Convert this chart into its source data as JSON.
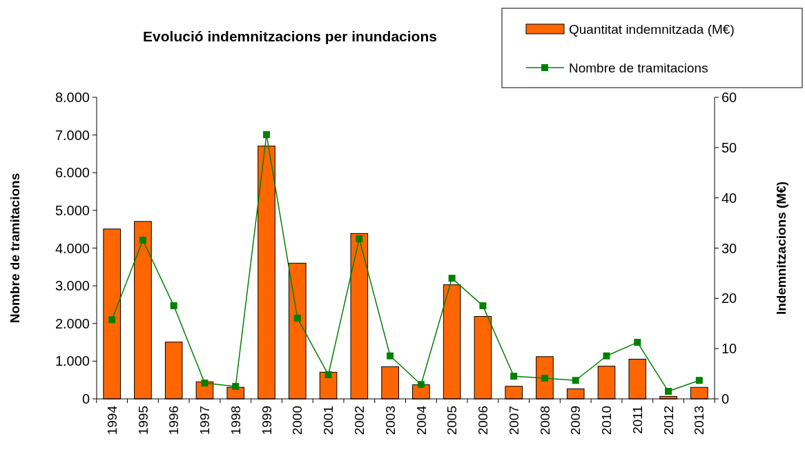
{
  "chart_data": {
    "type": "bar",
    "title": "Evolució indemnitzacions per inundacions",
    "ylabel": "Nombre de tramitacions",
    "y2label": "Indemnitzacions (M€)",
    "categories": [
      "1994",
      "1995",
      "1996",
      "1997",
      "1998",
      "1999",
      "2000",
      "2001",
      "2002",
      "2003",
      "2004",
      "2005",
      "2006",
      "2007",
      "2008",
      "2009",
      "2010",
      "2011",
      "2012",
      "2013"
    ],
    "series": [
      {
        "name": "Quantitat indemnitzada (M€)",
        "axis": "y2",
        "color": "#ff6600",
        "values": [
          33.8,
          35.3,
          11.3,
          3.4,
          2.3,
          50.3,
          27,
          5.3,
          32.9,
          6.4,
          2.8,
          22.7,
          16.4,
          2.5,
          8.4,
          2.0,
          6.5,
          7.9,
          0.5,
          2.3
        ]
      },
      {
        "name": "Nombre de tramitacions",
        "type": "line",
        "axis": "y",
        "color": "#008000",
        "marker": "square",
        "values": [
          2100,
          4210,
          2470,
          420,
          330,
          7010,
          2140,
          640,
          4250,
          1140,
          380,
          3200,
          2470,
          600,
          550,
          490,
          1140,
          1500,
          200,
          490
        ]
      }
    ],
    "ylim": [
      0,
      8000
    ],
    "yticks": [
      {
        "value": 0,
        "label": "0"
      },
      {
        "value": 1000,
        "label": "1.000"
      },
      {
        "value": 2000,
        "label": "2.000"
      },
      {
        "value": 3000,
        "label": "3.000"
      },
      {
        "value": 4000,
        "label": "4.000"
      },
      {
        "value": 5000,
        "label": "5.000"
      },
      {
        "value": 6000,
        "label": "6.000"
      },
      {
        "value": 7000,
        "label": "7.000"
      },
      {
        "value": 8000,
        "label": "8.000"
      }
    ],
    "y2lim": [
      0,
      60
    ],
    "y2ticks": [
      0,
      10,
      20,
      30,
      40,
      50,
      60
    ],
    "legend": "top right",
    "grid": false
  }
}
